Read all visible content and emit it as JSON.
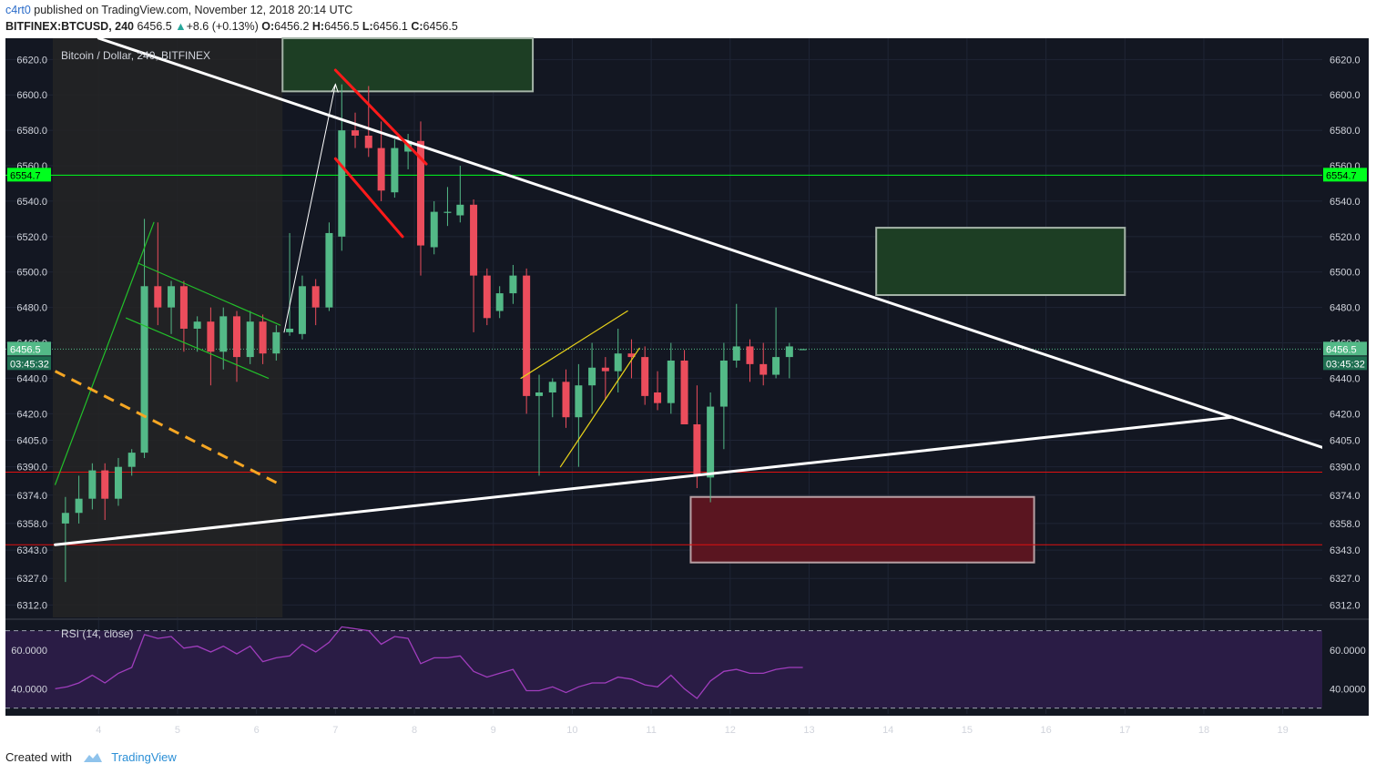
{
  "header": {
    "author": "c4rt0",
    "published_text": "published on TradingView.com, November 12, 2018 20:14 UTC",
    "symbol": "BITFINEX:BTCUSD, 240",
    "last": "6456.5",
    "change": "+8.6 (+0.13%)",
    "ohlc_o_label": "O:",
    "ohlc_o": "6456.2",
    "ohlc_h_label": "H:",
    "ohlc_h": "6456.5",
    "ohlc_l_label": "L:",
    "ohlc_l": "6456.1",
    "ohlc_c_label": "C:",
    "ohlc_c": "6456.5"
  },
  "footer": {
    "created_with": "Created with",
    "brand": "TradingView"
  },
  "colors": {
    "bg": "#131722",
    "up": "#53b987",
    "down": "#eb4d5c",
    "grid": "#1f2535",
    "axis_text": "#d1d4dc",
    "rsi_line": "#a03dbd",
    "rsi_band": "#2a1c45"
  },
  "chart_data": {
    "type": "candlestick",
    "title": "Bitcoin / Dollar, 240, BITFINEX",
    "y_ticks": [
      6312.0,
      6327.0,
      6343.0,
      6358.0,
      6374.0,
      6390.0,
      6405.0,
      6420.0,
      6440.0,
      6460.0,
      6480.0,
      6500.0,
      6520.0,
      6540.0,
      6560.0,
      6580.0,
      6600.0,
      6620.0
    ],
    "ylim": [
      6305,
      6632
    ],
    "x_ticks": [
      {
        "label": "4",
        "x": 4
      },
      {
        "label": "5",
        "x": 5
      },
      {
        "label": "6",
        "x": 6
      },
      {
        "label": "7",
        "x": 7
      },
      {
        "label": "8",
        "x": 8
      },
      {
        "label": "9",
        "x": 9
      },
      {
        "label": "10",
        "x": 10
      },
      {
        "label": "11",
        "x": 11
      },
      {
        "label": "12",
        "x": 12
      },
      {
        "label": "13",
        "x": 13
      },
      {
        "label": "14",
        "x": 14
      },
      {
        "label": "15",
        "x": 15
      },
      {
        "label": "16",
        "x": 16
      },
      {
        "label": "17",
        "x": 17
      },
      {
        "label": "18",
        "x": 18
      },
      {
        "label": "19",
        "x": 19
      }
    ],
    "xlim": [
      3.42,
      19.5
    ],
    "price_label": "6456.5",
    "countdown_label": "03:45:32",
    "level_label": "6554.7",
    "candles": [
      {
        "x": 3.58,
        "o": 6358,
        "h": 6373,
        "l": 6325,
        "c": 6364
      },
      {
        "x": 3.75,
        "o": 6364,
        "h": 6385,
        "l": 6358,
        "c": 6372
      },
      {
        "x": 3.92,
        "o": 6372,
        "h": 6392,
        "l": 6366,
        "c": 6388
      },
      {
        "x": 4.08,
        "o": 6388,
        "h": 6392,
        "l": 6360,
        "c": 6372
      },
      {
        "x": 4.25,
        "o": 6372,
        "h": 6395,
        "l": 6368,
        "c": 6390
      },
      {
        "x": 4.42,
        "o": 6390,
        "h": 6400,
        "l": 6385,
        "c": 6398
      },
      {
        "x": 4.58,
        "o": 6398,
        "h": 6530,
        "l": 6395,
        "c": 6492
      },
      {
        "x": 4.75,
        "o": 6492,
        "h": 6528,
        "l": 6470,
        "c": 6480
      },
      {
        "x": 4.92,
        "o": 6480,
        "h": 6495,
        "l": 6465,
        "c": 6492
      },
      {
        "x": 5.08,
        "o": 6492,
        "h": 6495,
        "l": 6455,
        "c": 6468
      },
      {
        "x": 5.25,
        "o": 6468,
        "h": 6475,
        "l": 6455,
        "c": 6472
      },
      {
        "x": 5.42,
        "o": 6472,
        "h": 6480,
        "l": 6436,
        "c": 6455
      },
      {
        "x": 5.58,
        "o": 6455,
        "h": 6480,
        "l": 6445,
        "c": 6475
      },
      {
        "x": 5.75,
        "o": 6475,
        "h": 6478,
        "l": 6438,
        "c": 6452
      },
      {
        "x": 5.92,
        "o": 6452,
        "h": 6478,
        "l": 6448,
        "c": 6472
      },
      {
        "x": 6.08,
        "o": 6472,
        "h": 6476,
        "l": 6448,
        "c": 6454
      },
      {
        "x": 6.25,
        "o": 6454,
        "h": 6470,
        "l": 6450,
        "c": 6466
      },
      {
        "x": 6.42,
        "o": 6466,
        "h": 6522,
        "l": 6464,
        "c": 6468
      },
      {
        "x": 6.58,
        "o": 6465,
        "h": 6498,
        "l": 6462,
        "c": 6492
      },
      {
        "x": 6.75,
        "o": 6492,
        "h": 6496,
        "l": 6470,
        "c": 6480
      },
      {
        "x": 6.92,
        "o": 6480,
        "h": 6528,
        "l": 6478,
        "c": 6522
      },
      {
        "x": 7.08,
        "o": 6520,
        "h": 6606,
        "l": 6512,
        "c": 6580
      },
      {
        "x": 7.25,
        "o": 6580,
        "h": 6590,
        "l": 6570,
        "c": 6577
      },
      {
        "x": 7.42,
        "o": 6577,
        "h": 6605,
        "l": 6565,
        "c": 6570
      },
      {
        "x": 7.58,
        "o": 6570,
        "h": 6585,
        "l": 6540,
        "c": 6546
      },
      {
        "x": 7.75,
        "o": 6545,
        "h": 6575,
        "l": 6542,
        "c": 6570
      },
      {
        "x": 7.92,
        "o": 6568,
        "h": 6578,
        "l": 6558,
        "c": 6574
      },
      {
        "x": 8.08,
        "o": 6574,
        "h": 6585,
        "l": 6498,
        "c": 6515
      },
      {
        "x": 8.25,
        "o": 6514,
        "h": 6540,
        "l": 6510,
        "c": 6534
      },
      {
        "x": 8.42,
        "o": 6534,
        "h": 6548,
        "l": 6526,
        "c": 6534
      },
      {
        "x": 8.58,
        "o": 6532,
        "h": 6560,
        "l": 6528,
        "c": 6538
      },
      {
        "x": 8.75,
        "o": 6538,
        "h": 6541,
        "l": 6466,
        "c": 6498
      },
      {
        "x": 8.92,
        "o": 6498,
        "h": 6502,
        "l": 6470,
        "c": 6474
      },
      {
        "x": 9.08,
        "o": 6478,
        "h": 6492,
        "l": 6474,
        "c": 6488
      },
      {
        "x": 9.25,
        "o": 6488,
        "h": 6504,
        "l": 6482,
        "c": 6498
      },
      {
        "x": 9.42,
        "o": 6498,
        "h": 6502,
        "l": 6420,
        "c": 6430
      },
      {
        "x": 9.58,
        "o": 6430,
        "h": 6442,
        "l": 6385,
        "c": 6432
      },
      {
        "x": 9.75,
        "o": 6432,
        "h": 6440,
        "l": 6418,
        "c": 6438
      },
      {
        "x": 9.92,
        "o": 6438,
        "h": 6445,
        "l": 6412,
        "c": 6418
      },
      {
        "x": 10.08,
        "o": 6418,
        "h": 6448,
        "l": 6390,
        "c": 6436
      },
      {
        "x": 10.25,
        "o": 6436,
        "h": 6460,
        "l": 6420,
        "c": 6446
      },
      {
        "x": 10.42,
        "o": 6446,
        "h": 6452,
        "l": 6428,
        "c": 6444
      },
      {
        "x": 10.58,
        "o": 6444,
        "h": 6468,
        "l": 6432,
        "c": 6454
      },
      {
        "x": 10.75,
        "o": 6454,
        "h": 6462,
        "l": 6440,
        "c": 6452
      },
      {
        "x": 10.92,
        "o": 6452,
        "h": 6458,
        "l": 6425,
        "c": 6430
      },
      {
        "x": 11.08,
        "o": 6432,
        "h": 6444,
        "l": 6422,
        "c": 6426
      },
      {
        "x": 11.25,
        "o": 6426,
        "h": 6460,
        "l": 6420,
        "c": 6450
      },
      {
        "x": 11.42,
        "o": 6450,
        "h": 6456,
        "l": 6414,
        "c": 6414
      },
      {
        "x": 11.58,
        "o": 6414,
        "h": 6436,
        "l": 6378,
        "c": 6385
      },
      {
        "x": 11.75,
        "o": 6384,
        "h": 6432,
        "l": 6370,
        "c": 6424
      },
      {
        "x": 11.92,
        "o": 6424,
        "h": 6460,
        "l": 6400,
        "c": 6450
      },
      {
        "x": 12.08,
        "o": 6450,
        "h": 6482,
        "l": 6446,
        "c": 6458
      },
      {
        "x": 12.25,
        "o": 6458,
        "h": 6462,
        "l": 6438,
        "c": 6448
      },
      {
        "x": 12.42,
        "o": 6448,
        "h": 6460,
        "l": 6436,
        "c": 6442
      },
      {
        "x": 12.58,
        "o": 6442,
        "h": 6480,
        "l": 6440,
        "c": 6452
      },
      {
        "x": 12.75,
        "o": 6452,
        "h": 6460,
        "l": 6440,
        "c": 6458
      },
      {
        "x": 12.92,
        "o": 6456.2,
        "h": 6456.5,
        "l": 6456.1,
        "c": 6456.5
      }
    ],
    "horizontal_levels": [
      {
        "name": "resistance-green",
        "y": 6554.7,
        "color": "#00ff1e"
      },
      {
        "name": "support-red-upper",
        "y": 6387,
        "color": "#e01010"
      },
      {
        "name": "support-red-lower",
        "y": 6346,
        "color": "#e01010"
      },
      {
        "name": "last-price-dotted",
        "y": 6456.5,
        "color": "#53b987"
      }
    ],
    "trendlines": [
      {
        "name": "descending-resistance",
        "color": "#ffffff",
        "width": 3,
        "points": [
          [
            4.0,
            6632
          ],
          [
            19.5,
            6401
          ]
        ]
      },
      {
        "name": "ascending-support",
        "color": "#ffffff",
        "width": 3,
        "points": [
          [
            3.45,
            6346
          ],
          [
            18.35,
            6418
          ]
        ]
      },
      {
        "name": "red-channel-upper",
        "color": "#ff1a1a",
        "width": 3,
        "points": [
          [
            7.0,
            6614
          ],
          [
            8.15,
            6561
          ]
        ]
      },
      {
        "name": "red-channel-lower",
        "color": "#ff1a1a",
        "width": 3,
        "points": [
          [
            7.0,
            6564
          ],
          [
            7.85,
            6520
          ]
        ]
      },
      {
        "name": "green-flag-upper",
        "color": "#22c02a",
        "width": 1.2,
        "points": [
          [
            4.5,
            6505
          ],
          [
            6.3,
            6470
          ]
        ]
      },
      {
        "name": "green-flag-lower",
        "color": "#22c02a",
        "width": 1.2,
        "points": [
          [
            4.35,
            6474
          ],
          [
            6.15,
            6440
          ]
        ]
      },
      {
        "name": "green-pole-1",
        "color": "#22c02a",
        "width": 1.2,
        "points": [
          [
            3.45,
            6380
          ],
          [
            4.7,
            6528
          ]
        ]
      },
      {
        "name": "white-arrow-up",
        "color": "#ffffff",
        "width": 1,
        "points": [
          [
            6.35,
            6466
          ],
          [
            7.0,
            6606
          ]
        ]
      },
      {
        "name": "yellow-upper",
        "color": "#e8d21a",
        "width": 1.2,
        "points": [
          [
            9.35,
            6440
          ],
          [
            10.7,
            6478
          ]
        ]
      },
      {
        "name": "yellow-lower",
        "color": "#e8d21a",
        "width": 1.2,
        "points": [
          [
            9.85,
            6390
          ],
          [
            10.85,
            6457
          ]
        ]
      }
    ],
    "dashed_lines": [
      {
        "name": "orange-dashed",
        "color": "#f5a623",
        "width": 3,
        "points": [
          [
            3.45,
            6444
          ],
          [
            6.3,
            6380
          ]
        ]
      }
    ],
    "boxes": [
      {
        "name": "green-box-top",
        "x0": 6.33,
        "x1": 9.5,
        "y0": 6602,
        "y1": 6636,
        "fill": "#1d3e24",
        "stroke": "#a5b4a8"
      },
      {
        "name": "green-box-right",
        "x0": 13.85,
        "x1": 17.0,
        "y0": 6487,
        "y1": 6525,
        "fill": "#1d3e24",
        "stroke": "#a5b4a8"
      },
      {
        "name": "red-box",
        "x0": 11.5,
        "x1": 15.85,
        "y0": 6336,
        "y1": 6373,
        "fill": "#5a1520",
        "stroke": "#b8a0a4"
      }
    ],
    "shaded_region": {
      "name": "grey-zone",
      "x0": 3.42,
      "x1": 6.33,
      "fill": "#242424"
    },
    "rsi": {
      "title": "RSI (14, close)",
      "ticks": [
        60.0,
        40.0
      ],
      "tick_labels": [
        "60.0000",
        "40.0000"
      ],
      "ylim": [
        27,
        75
      ],
      "band": [
        30,
        70
      ],
      "x": [
        3.45,
        3.6,
        3.75,
        3.92,
        4.08,
        4.25,
        4.42,
        4.58,
        4.75,
        4.92,
        5.08,
        5.25,
        5.42,
        5.58,
        5.75,
        5.92,
        6.08,
        6.25,
        6.42,
        6.58,
        6.75,
        6.92,
        7.08,
        7.25,
        7.42,
        7.58,
        7.75,
        7.92,
        8.08,
        8.25,
        8.42,
        8.58,
        8.75,
        8.92,
        9.08,
        9.25,
        9.42,
        9.58,
        9.75,
        9.92,
        10.08,
        10.25,
        10.42,
        10.58,
        10.75,
        10.92,
        11.08,
        11.25,
        11.42,
        11.58,
        11.75,
        11.92,
        12.08,
        12.25,
        12.42,
        12.58,
        12.75,
        12.92
      ],
      "values": [
        40,
        41,
        43,
        47,
        43,
        48,
        51,
        68,
        66,
        67,
        61,
        62,
        59,
        62,
        58,
        62,
        54,
        56,
        57,
        63,
        59,
        64,
        72,
        71,
        70,
        63,
        67,
        66,
        53,
        56,
        56,
        57,
        49,
        46,
        48,
        50,
        39,
        39,
        41,
        38,
        41,
        43,
        43,
        46,
        45,
        42,
        41,
        47,
        40,
        35,
        44,
        49,
        50,
        48,
        48,
        50,
        51,
        51
      ]
    }
  }
}
